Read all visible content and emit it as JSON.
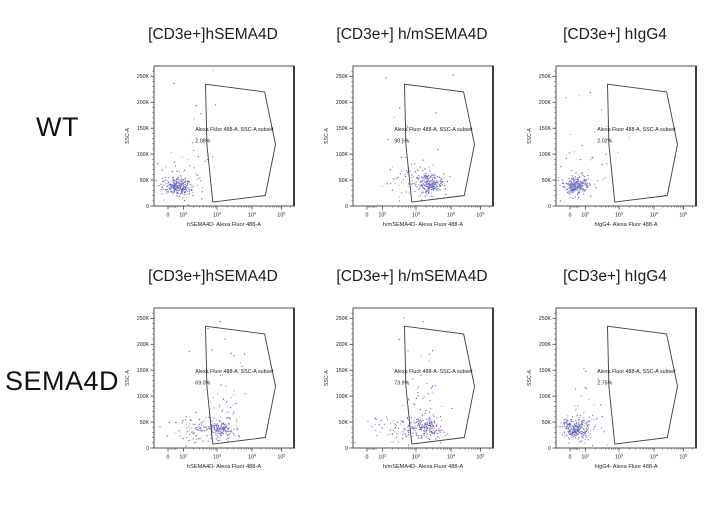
{
  "figure": {
    "rows": [
      {
        "label": "WT"
      },
      {
        "label": "SEMA4D"
      }
    ]
  },
  "shared": {
    "ylabel": "SSC-A",
    "y_ticks": [
      "0",
      "50K",
      "100K",
      "150K",
      "200K",
      "250K"
    ],
    "x_ticks": [
      "0",
      "10^2",
      "10^3",
      "10^4",
      "10^5"
    ],
    "y_axis_max": 250000,
    "x_axis_scale": "biexponential-log",
    "gate_label": "Alexa Fluor 488-A, SSC-A subset",
    "gate_polygon_axis_fractions": [
      [
        0.368,
        0.87
      ],
      [
        0.79,
        0.815
      ],
      [
        0.868,
        0.44
      ],
      [
        0.795,
        0.075
      ],
      [
        0.42,
        0.028
      ],
      [
        0.378,
        0.44
      ]
    ],
    "dot_colors": [
      "#5353b5",
      "#7474cc",
      "#9b9bdd",
      "#a2a6b5"
    ]
  },
  "chart_data": [
    {
      "type": "scatter",
      "row": "WT",
      "title": "[CD3e+]hSEMA4D",
      "xlabel": "hSEMA4D- Alexa Fluor 488-A",
      "ylabel": "SSC-A",
      "gate": {
        "label": "Alexa Fluor 488-A, SSC-A subset",
        "percent": "2.08%"
      },
      "cluster_units": "fraction of axis range (x: biexp-log 0..10^5, y: 0..270K)",
      "clusters": [
        {
          "cx": 0.17,
          "cy": 0.135,
          "sx": 0.05,
          "sy": 0.032,
          "n": 240
        },
        {
          "cx": 0.2,
          "cy": 0.18,
          "sx": 0.1,
          "sy": 0.1,
          "n": 45
        },
        {
          "cx": 0.3,
          "cy": 0.55,
          "sx": 0.1,
          "sy": 0.22,
          "n": 14
        }
      ]
    },
    {
      "type": "scatter",
      "row": "WT",
      "title": "[CD3e+] h/mSEMA4D",
      "xlabel": "h/mSEMA4D- Alexa Fluor 488-A",
      "ylabel": "SSC-A",
      "gate": {
        "label": "Alexa Fluor 488-A, SSC-A subset",
        "percent": "90.5%"
      },
      "cluster_units": "fraction of axis range (x: biexp-log 0..10^5, y: 0..270K)",
      "clusters": [
        {
          "cx": 0.55,
          "cy": 0.16,
          "sx": 0.05,
          "sy": 0.035,
          "n": 220
        },
        {
          "cx": 0.45,
          "cy": 0.17,
          "sx": 0.11,
          "sy": 0.07,
          "n": 70
        },
        {
          "cx": 0.45,
          "cy": 0.45,
          "sx": 0.12,
          "sy": 0.2,
          "n": 18
        }
      ]
    },
    {
      "type": "scatter",
      "row": "WT",
      "title": "[CD3e+] hIgG4",
      "xlabel": "hIgG4- Alexa Fluor 488-A",
      "ylabel": "SSC-A",
      "gate": {
        "label": "Alexa Fluor 488-A, SSC-A subset",
        "percent": "2.02%"
      },
      "cluster_units": "fraction of axis range (x: biexp-log 0..10^5, y: 0..270K)",
      "clusters": [
        {
          "cx": 0.15,
          "cy": 0.14,
          "sx": 0.045,
          "sy": 0.032,
          "n": 240
        },
        {
          "cx": 0.18,
          "cy": 0.18,
          "sx": 0.09,
          "sy": 0.09,
          "n": 40
        },
        {
          "cx": 0.3,
          "cy": 0.55,
          "sx": 0.12,
          "sy": 0.2,
          "n": 10
        }
      ]
    },
    {
      "type": "scatter",
      "row": "SEMA4D",
      "title": "[CD3e+]hSEMA4D",
      "xlabel": "hSEMA4D- Alexa Fluor 488-A",
      "ylabel": "SSC-A",
      "gate": {
        "label": "Alexa Fluor 488-A, SSC-A subset",
        "percent": "69.0%"
      },
      "cluster_units": "fraction of axis range (x: biexp-log 0..10^5, y: 0..270K)",
      "clusters": [
        {
          "cx": 0.47,
          "cy": 0.13,
          "sx": 0.06,
          "sy": 0.035,
          "n": 150
        },
        {
          "cx": 0.3,
          "cy": 0.13,
          "sx": 0.1,
          "sy": 0.04,
          "n": 90
        },
        {
          "cx": 0.5,
          "cy": 0.32,
          "sx": 0.07,
          "sy": 0.12,
          "n": 40
        },
        {
          "cx": 0.45,
          "cy": 0.7,
          "sx": 0.1,
          "sy": 0.12,
          "n": 10
        }
      ]
    },
    {
      "type": "scatter",
      "row": "SEMA4D",
      "title": "[CD3e+] h/mSEMA4D",
      "xlabel": "h/mSEMA4D- Alexa Fluor 488-A",
      "ylabel": "SSC-A",
      "gate": {
        "label": "Alexa Fluor 488-A, SSC-A subset",
        "percent": "73.9%"
      },
      "cluster_units": "fraction of axis range (x: biexp-log 0..10^5, y: 0..270K)",
      "clusters": [
        {
          "cx": 0.52,
          "cy": 0.15,
          "sx": 0.055,
          "sy": 0.04,
          "n": 170
        },
        {
          "cx": 0.35,
          "cy": 0.14,
          "sx": 0.11,
          "sy": 0.05,
          "n": 80
        },
        {
          "cx": 0.5,
          "cy": 0.35,
          "sx": 0.08,
          "sy": 0.12,
          "n": 35
        },
        {
          "cx": 0.48,
          "cy": 0.72,
          "sx": 0.08,
          "sy": 0.1,
          "n": 8
        }
      ]
    },
    {
      "type": "scatter",
      "row": "SEMA4D",
      "title": "[CD3e+] hIgG4",
      "xlabel": "hIgG4- Alexa Fluor 488-A",
      "ylabel": "SSC-A",
      "gate": {
        "label": "Alexa Fluor 488-A, SSC-A subset",
        "percent": "2.75%"
      },
      "cluster_units": "fraction of axis range (x: biexp-log 0..10^5, y: 0..270K)",
      "clusters": [
        {
          "cx": 0.14,
          "cy": 0.13,
          "sx": 0.045,
          "sy": 0.033,
          "n": 230
        },
        {
          "cx": 0.17,
          "cy": 0.17,
          "sx": 0.09,
          "sy": 0.09,
          "n": 45
        },
        {
          "cx": 0.28,
          "cy": 0.5,
          "sx": 0.1,
          "sy": 0.18,
          "n": 10
        }
      ]
    }
  ]
}
